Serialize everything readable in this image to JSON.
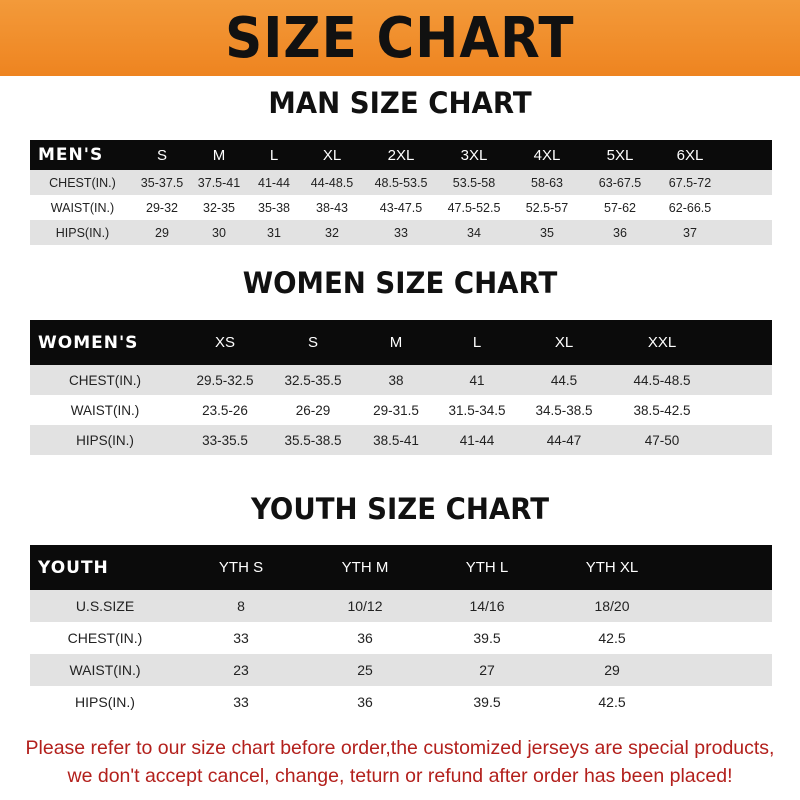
{
  "header": {
    "title": "SIZE CHART",
    "accent": "#f08a24"
  },
  "men": {
    "title": "MAN SIZE CHART",
    "label": "MEN'S",
    "sizes": [
      "S",
      "M",
      "L",
      "XL",
      "2XL",
      "3XL",
      "4XL",
      "5XL",
      "6XL"
    ],
    "rows": [
      {
        "label": "CHEST(IN.)",
        "values": [
          "35-37.5",
          "37.5-41",
          "41-44",
          "44-48.5",
          "48.5-53.5",
          "53.5-58",
          "58-63",
          "63-67.5",
          "67.5-72"
        ]
      },
      {
        "label": "WAIST(IN.)",
        "values": [
          "29-32",
          "32-35",
          "35-38",
          "38-43",
          "43-47.5",
          "47.5-52.5",
          "52.5-57",
          "57-62",
          "62-66.5"
        ]
      },
      {
        "label": "HIPS(IN.)",
        "values": [
          "29",
          "30",
          "31",
          "32",
          "33",
          "34",
          "35",
          "36",
          "37"
        ]
      }
    ]
  },
  "women": {
    "title": "WOMEN SIZE CHART",
    "label": "WOMEN'S",
    "sizes": [
      "XS",
      "S",
      "M",
      "L",
      "XL",
      "XXL"
    ],
    "rows": [
      {
        "label": "CHEST(IN.)",
        "values": [
          "29.5-32.5",
          "32.5-35.5",
          "38",
          "41",
          "44.5",
          "44.5-48.5"
        ]
      },
      {
        "label": "WAIST(IN.)",
        "values": [
          "23.5-26",
          "26-29",
          "29-31.5",
          "31.5-34.5",
          "34.5-38.5",
          "38.5-42.5"
        ]
      },
      {
        "label": "HIPS(IN.)",
        "values": [
          "33-35.5",
          "35.5-38.5",
          "38.5-41",
          "41-44",
          "44-47",
          "47-50"
        ]
      }
    ]
  },
  "youth": {
    "title": "YOUTH SIZE CHART",
    "label": "YOUTH",
    "sizes": [
      "YTH S",
      "YTH M",
      "YTH L",
      "YTH XL"
    ],
    "rows": [
      {
        "label": "U.S.SIZE",
        "values": [
          "8",
          "10/12",
          "14/16",
          "18/20"
        ]
      },
      {
        "label": "CHEST(IN.)",
        "values": [
          "33",
          "36",
          "39.5",
          "42.5"
        ]
      },
      {
        "label": "WAIST(IN.)",
        "values": [
          "23",
          "25",
          "27",
          "29"
        ]
      },
      {
        "label": "HIPS(IN.)",
        "values": [
          "33",
          "36",
          "39.5",
          "42.5"
        ]
      }
    ]
  },
  "notice": {
    "line1": "Please refer to our size chart before order,the customized jerseys are special products,",
    "line2": "we don't accept cancel, change, teturn or refund after order has been placed!",
    "color": "#b3201c"
  }
}
